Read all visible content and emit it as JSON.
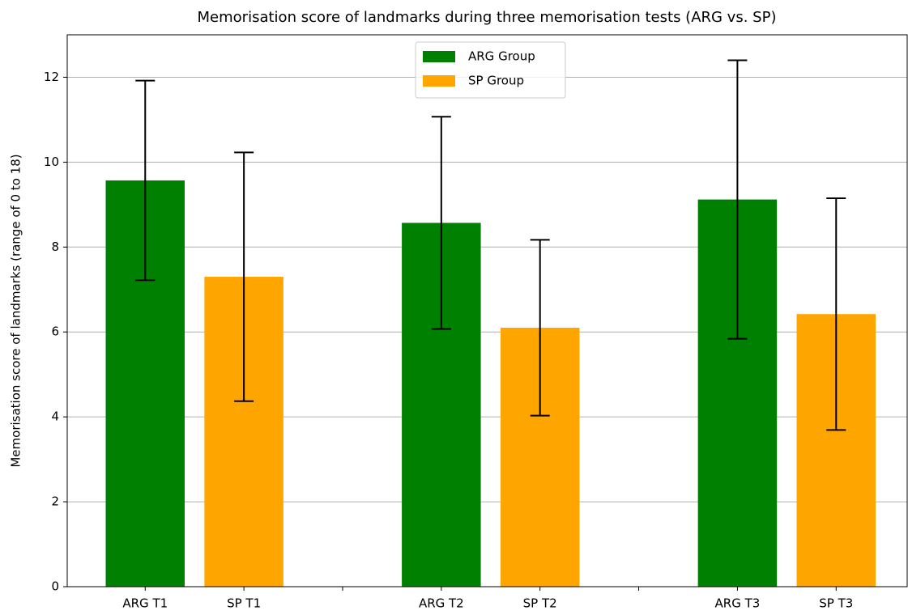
{
  "chart_data": {
    "type": "bar",
    "title": "Memorisation score of landmarks during three memorisation tests (ARG vs. SP)",
    "y_label": "Memorisation score of landmarks (range of 0 to 18)",
    "categories": [
      "ARG T1",
      "SP T1",
      null,
      "ARG T2",
      "SP T2",
      null,
      "ARG T3",
      "SP T3"
    ],
    "series": [
      {
        "name": "ARG Group",
        "color": "#008000",
        "values": [
          9.57,
          null,
          null,
          8.57,
          null,
          null,
          9.12,
          null
        ],
        "errors": [
          2.35,
          null,
          null,
          2.5,
          null,
          null,
          3.28,
          null
        ]
      },
      {
        "name": "SP Group",
        "color": "#ffa500",
        "values": [
          null,
          7.3,
          null,
          null,
          6.1,
          null,
          null,
          6.42
        ],
        "errors": [
          null,
          2.93,
          null,
          null,
          2.07,
          null,
          null,
          2.73
        ]
      }
    ],
    "ylim": [
      0,
      13
    ],
    "yticks": [
      0,
      2,
      4,
      6,
      8,
      10,
      12
    ],
    "grid": true,
    "legend": "upper center"
  }
}
